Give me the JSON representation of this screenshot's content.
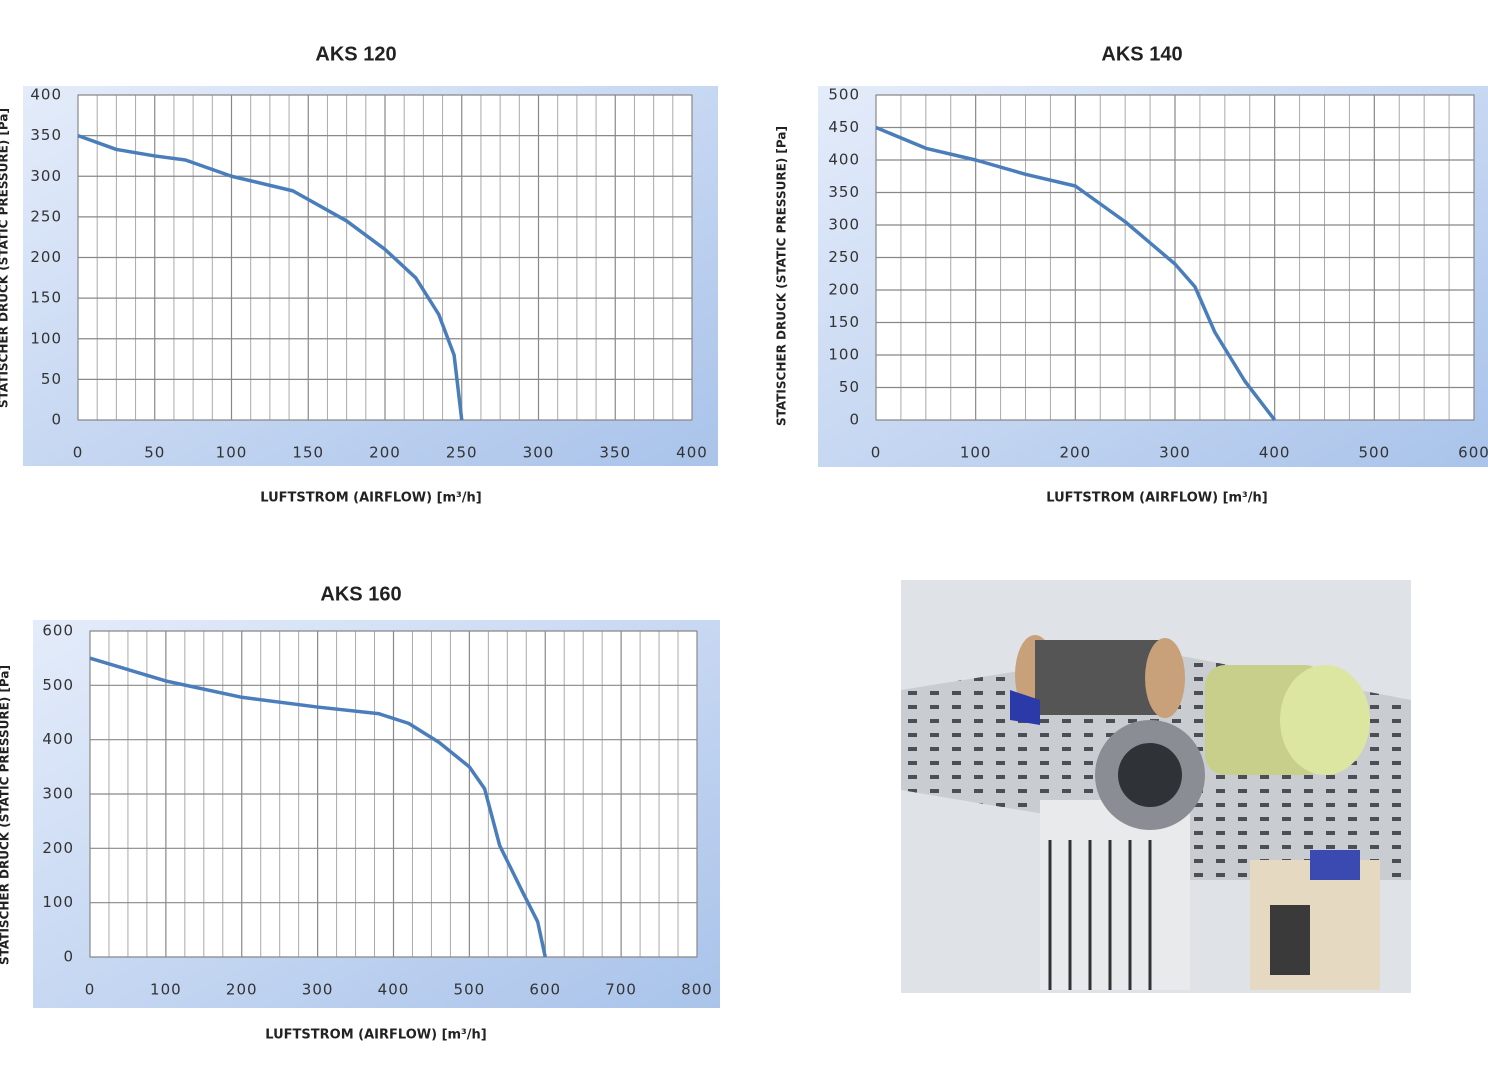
{
  "chart_data": [
    {
      "type": "line",
      "title": "AKS 120",
      "x_label": "LUFTSTROM (AIRFLOW)   [m³/h]",
      "y_label": "STATISCHER DRUCK (STATIC PRESSURE)   [Pa]",
      "x": [
        0,
        25,
        50,
        70,
        100,
        140,
        175,
        200,
        220,
        235,
        245,
        250
      ],
      "values": [
        350,
        333,
        325,
        320,
        300,
        282,
        245,
        210,
        175,
        130,
        80,
        0
      ],
      "color": "#4a7ebb",
      "xlim": [
        0,
        400
      ],
      "xticks": [
        0,
        50,
        100,
        150,
        200,
        250,
        300,
        350,
        400
      ],
      "ylim": [
        0,
        400
      ],
      "yticks": [
        0,
        50,
        100,
        150,
        200,
        250,
        300,
        350,
        400
      ],
      "grid": true
    },
    {
      "type": "line",
      "title": "AKS 140",
      "x_label": "LUFTSTROM (AIRFLOW)   [m³/h]",
      "y_label": "STATISCHER DRUCK (STATIC PRESSURE)   [Pa]",
      "x": [
        0,
        50,
        100,
        150,
        200,
        250,
        300,
        320,
        340,
        370,
        400
      ],
      "values": [
        450,
        418,
        400,
        378,
        360,
        305,
        240,
        205,
        135,
        60,
        0
      ],
      "color": "#4a7ebb",
      "xlim": [
        0,
        600
      ],
      "xticks": [
        0,
        100,
        200,
        300,
        400,
        500,
        600
      ],
      "ylim": [
        0,
        500
      ],
      "yticks": [
        0,
        50,
        100,
        150,
        200,
        250,
        300,
        350,
        400,
        450,
        500
      ],
      "grid": true
    },
    {
      "type": "line",
      "title": "AKS 160",
      "x_label": "LUFTSTROM (AIRFLOW)   [m³/h]",
      "y_label": "STATISCHER DRUCK (STATIC PRESSURE)   [Pa]",
      "x": [
        0,
        100,
        200,
        300,
        380,
        420,
        460,
        500,
        520,
        540,
        570,
        590,
        600
      ],
      "values": [
        550,
        508,
        478,
        460,
        448,
        430,
        395,
        350,
        310,
        205,
        120,
        65,
        0
      ],
      "color": "#4a7ebb",
      "xlim": [
        0,
        800
      ],
      "xticks": [
        0,
        100,
        200,
        300,
        400,
        500,
        600,
        700,
        800
      ],
      "ylim": [
        0,
        600
      ],
      "yticks": [
        0,
        100,
        200,
        300,
        400,
        500,
        600
      ],
      "grid": true
    }
  ]
}
